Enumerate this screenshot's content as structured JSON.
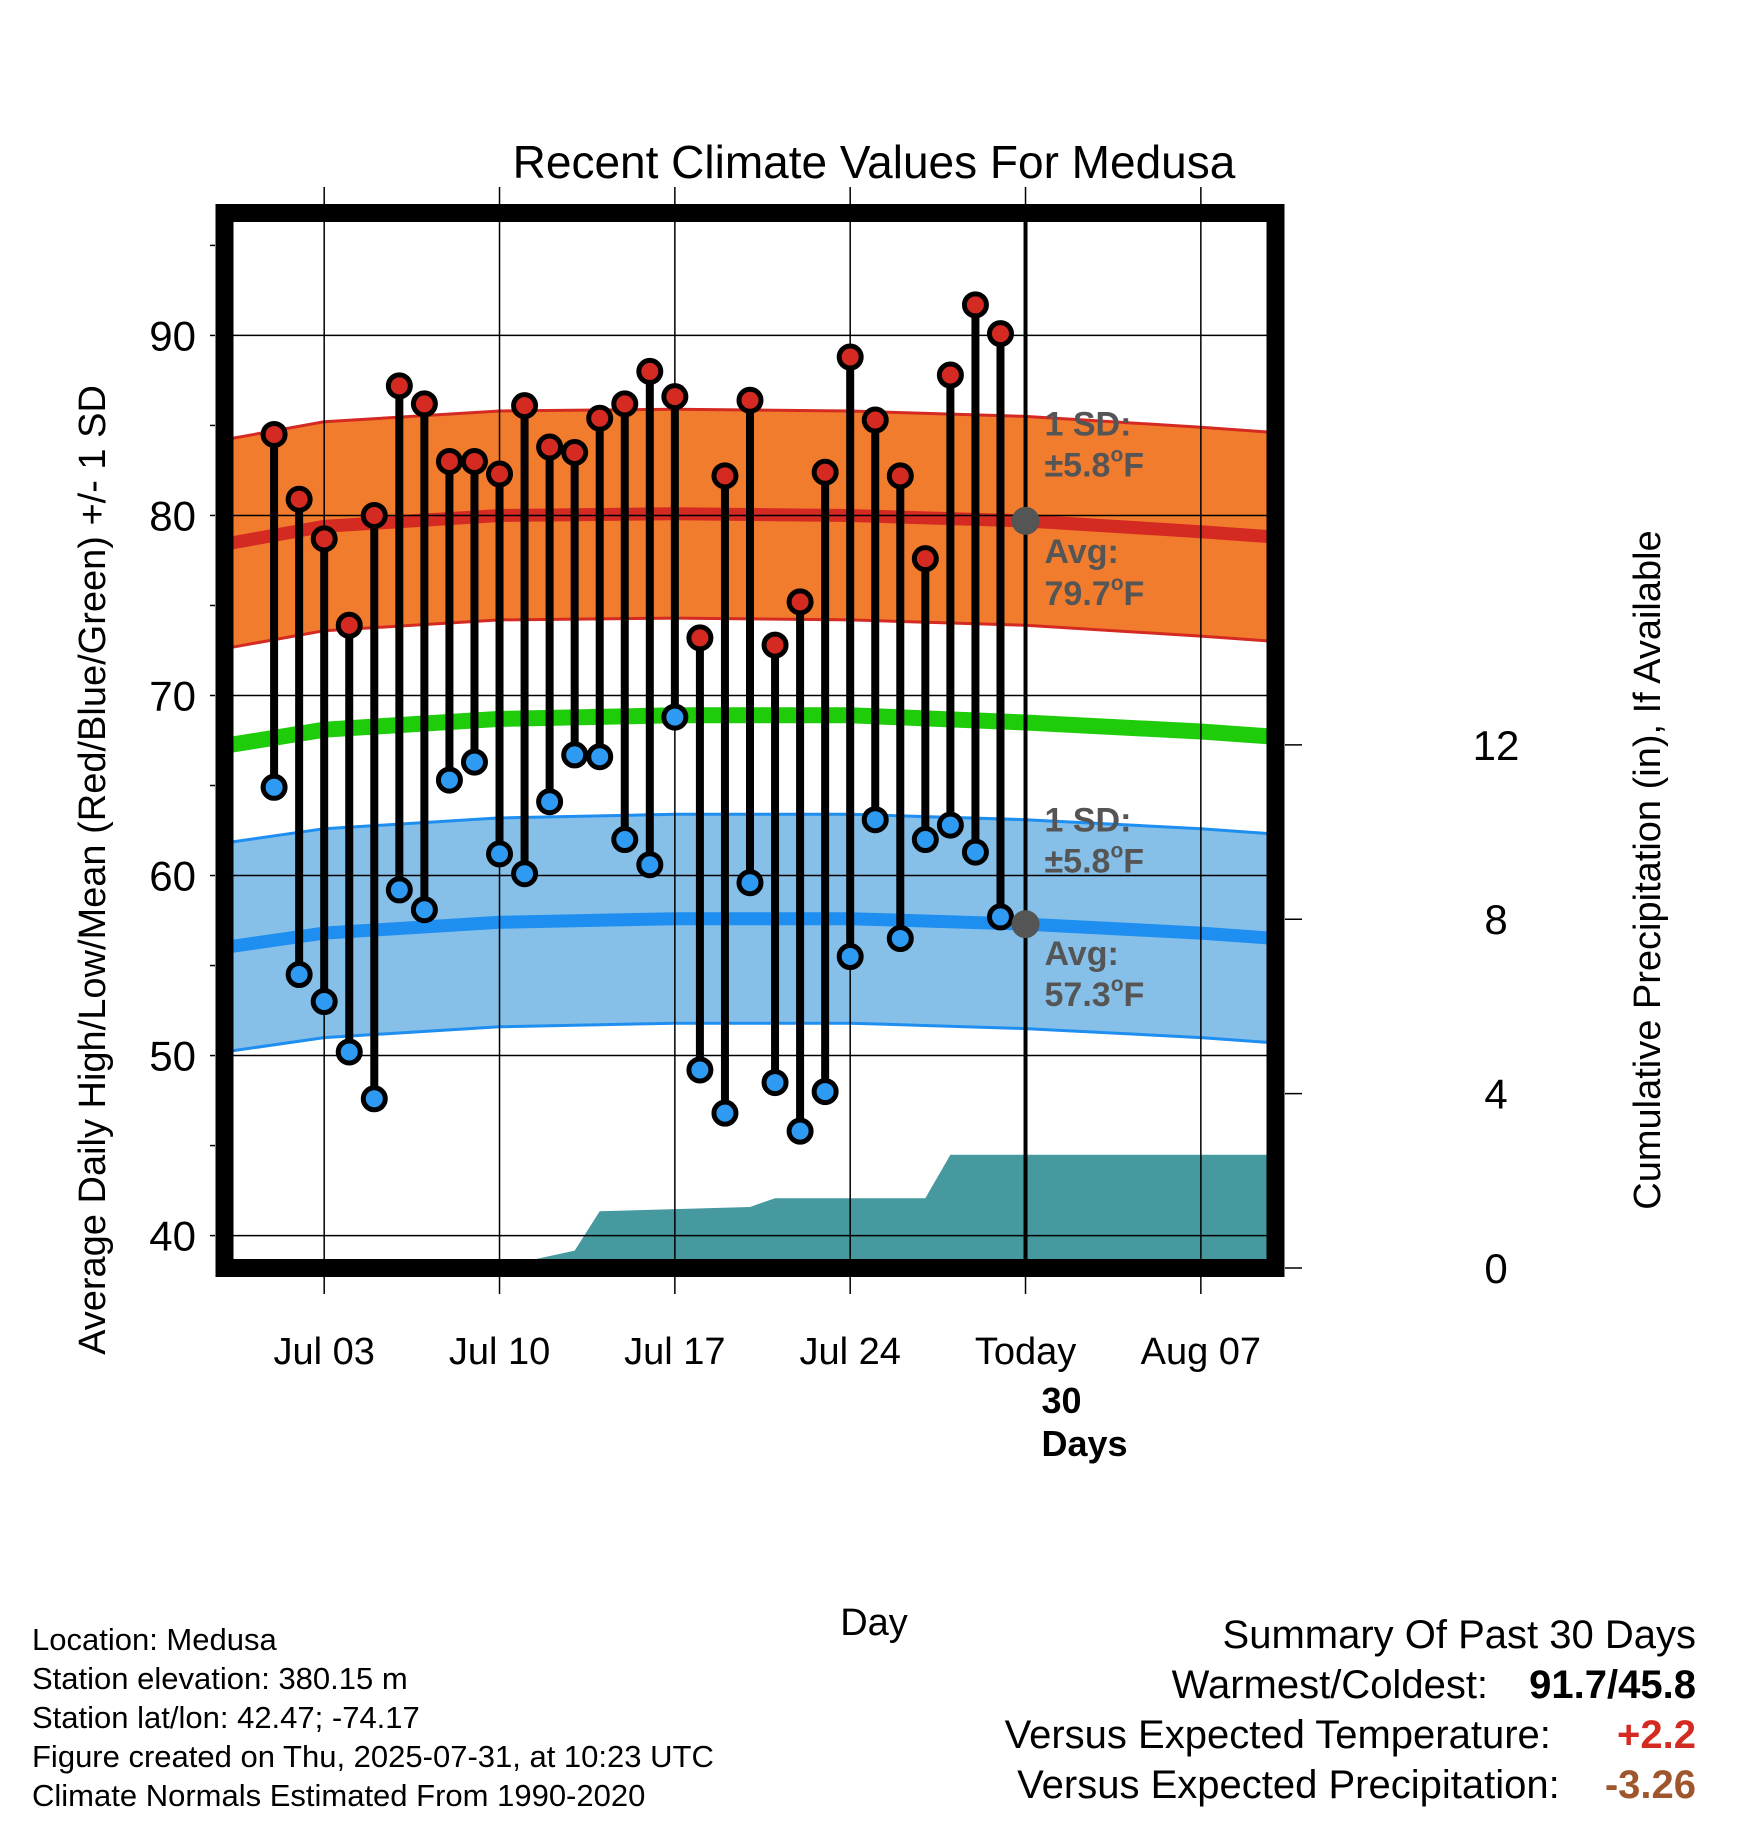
{
  "chart_data": {
    "type": "line",
    "title": "Recent Climate Values For Medusa",
    "xlabel": "Day",
    "ylabel": "Average Daily High/Low/Mean (Red/Blue/Green) +/- 1 SD",
    "y2label": "Cumulative Precipitation (in), If Available",
    "x_range": [
      "2025-06-29",
      "2025-08-10"
    ],
    "ylim": [
      38.2,
      96.8
    ],
    "y2lim": [
      0,
      24.2
    ],
    "x_ticks": [
      {
        "date": "2025-07-03",
        "label": "Jul 03"
      },
      {
        "date": "2025-07-10",
        "label": "Jul 10"
      },
      {
        "date": "2025-07-17",
        "label": "Jul 17"
      },
      {
        "date": "2025-07-24",
        "label": "Jul 24"
      },
      {
        "date": "2025-07-31",
        "label": "Today"
      },
      {
        "date": "2025-08-07",
        "label": "Aug 07"
      }
    ],
    "y_ticks": [
      40,
      50,
      60,
      70,
      80,
      90
    ],
    "y2_ticks": [
      0,
      4,
      8,
      12
    ],
    "grid": true,
    "today": "2025-07-31",
    "daily_observations": {
      "dates": [
        "2025-07-01",
        "2025-07-02",
        "2025-07-03",
        "2025-07-04",
        "2025-07-05",
        "2025-07-06",
        "2025-07-07",
        "2025-07-08",
        "2025-07-09",
        "2025-07-10",
        "2025-07-11",
        "2025-07-12",
        "2025-07-13",
        "2025-07-14",
        "2025-07-15",
        "2025-07-16",
        "2025-07-17",
        "2025-07-18",
        "2025-07-19",
        "2025-07-20",
        "2025-07-21",
        "2025-07-22",
        "2025-07-23",
        "2025-07-24",
        "2025-07-25",
        "2025-07-26",
        "2025-07-27",
        "2025-07-28",
        "2025-07-29",
        "2025-07-30"
      ],
      "high": [
        84.5,
        80.9,
        78.7,
        73.9,
        80.0,
        87.2,
        86.2,
        83.0,
        83.0,
        82.3,
        86.1,
        83.8,
        83.5,
        85.4,
        86.2,
        88.0,
        86.6,
        73.2,
        82.2,
        86.4,
        72.8,
        75.2,
        82.4,
        88.8,
        85.3,
        82.2,
        77.6,
        87.8,
        91.7,
        90.1
      ],
      "low": [
        64.9,
        54.5,
        53.0,
        50.2,
        47.6,
        59.2,
        58.1,
        65.3,
        66.3,
        61.2,
        60.1,
        64.1,
        66.7,
        66.6,
        62.0,
        60.6,
        68.8,
        49.2,
        46.8,
        59.6,
        48.5,
        45.8,
        48.0,
        55.5,
        63.1,
        56.5,
        62.0,
        62.8,
        61.3,
        57.7
      ]
    },
    "normals": {
      "dates": [
        "2025-06-29",
        "2025-07-03",
        "2025-07-10",
        "2025-07-17",
        "2025-07-24",
        "2025-07-31",
        "2025-08-07",
        "2025-08-10"
      ],
      "high_avg": [
        78.4,
        79.4,
        80.0,
        80.1,
        80.0,
        79.7,
        79.1,
        78.8
      ],
      "low_avg": [
        56.0,
        56.8,
        57.4,
        57.6,
        57.6,
        57.3,
        56.8,
        56.5
      ],
      "mean_avg": [
        67.2,
        68.1,
        68.7,
        68.9,
        68.9,
        68.5,
        68.0,
        67.7
      ],
      "sd": 5.8
    },
    "cumulative_precip": {
      "dates": [
        "2025-06-29",
        "2025-07-09",
        "2025-07-11",
        "2025-07-13",
        "2025-07-14",
        "2025-07-17",
        "2025-07-20",
        "2025-07-21",
        "2025-07-27",
        "2025-07-28",
        "2025-08-10"
      ],
      "values": [
        0.0,
        0.05,
        0.15,
        0.4,
        1.3,
        1.35,
        1.4,
        1.6,
        1.6,
        2.6,
        2.6
      ]
    },
    "annotations": {
      "high_sd_label": "1 SD:",
      "high_sd_value": "±5.8",
      "high_avg_label": "Avg:",
      "high_avg_value": "79.7",
      "low_sd_label": "1 SD:",
      "low_sd_value": "±5.8",
      "low_avg_label": "Avg:",
      "low_avg_value": "57.3",
      "degree_symbol": "o",
      "unit": "F",
      "days_number": "30",
      "days_word": "Days"
    },
    "colors": {
      "high_band": "#F27C2D",
      "high_line": "#D42A22",
      "low_band": "#86C0E8",
      "low_line": "#1E8EF0",
      "mean_line": "#1ECC0A",
      "precip_fill": "#45999F",
      "high_marker": "#D42A22",
      "low_marker": "#2E9AF2",
      "annotation_text": "#555555",
      "today_marker": "#555555",
      "warm_text": "#D42A22",
      "precip_text": "#A0562C"
    }
  },
  "footer": {
    "location": "Location: Medusa",
    "elevation": "Station elevation: 380.15 m",
    "latlon": "Station lat/lon: 42.47; -74.17",
    "created": "Figure created on Thu, 2025-07-31, at 10:23 UTC",
    "normals_period": "Climate Normals Estimated From 1990-2020"
  },
  "summary": {
    "heading": "Summary Of Past 30 Days",
    "warm_cold_label": "Warmest/Coldest:",
    "warm_cold_value": "91.7/45.8",
    "temp_label": "Versus Expected Temperature:",
    "temp_value": "+2.2",
    "precip_label": "Versus Expected Precipitation:",
    "precip_value": "-3.26"
  }
}
